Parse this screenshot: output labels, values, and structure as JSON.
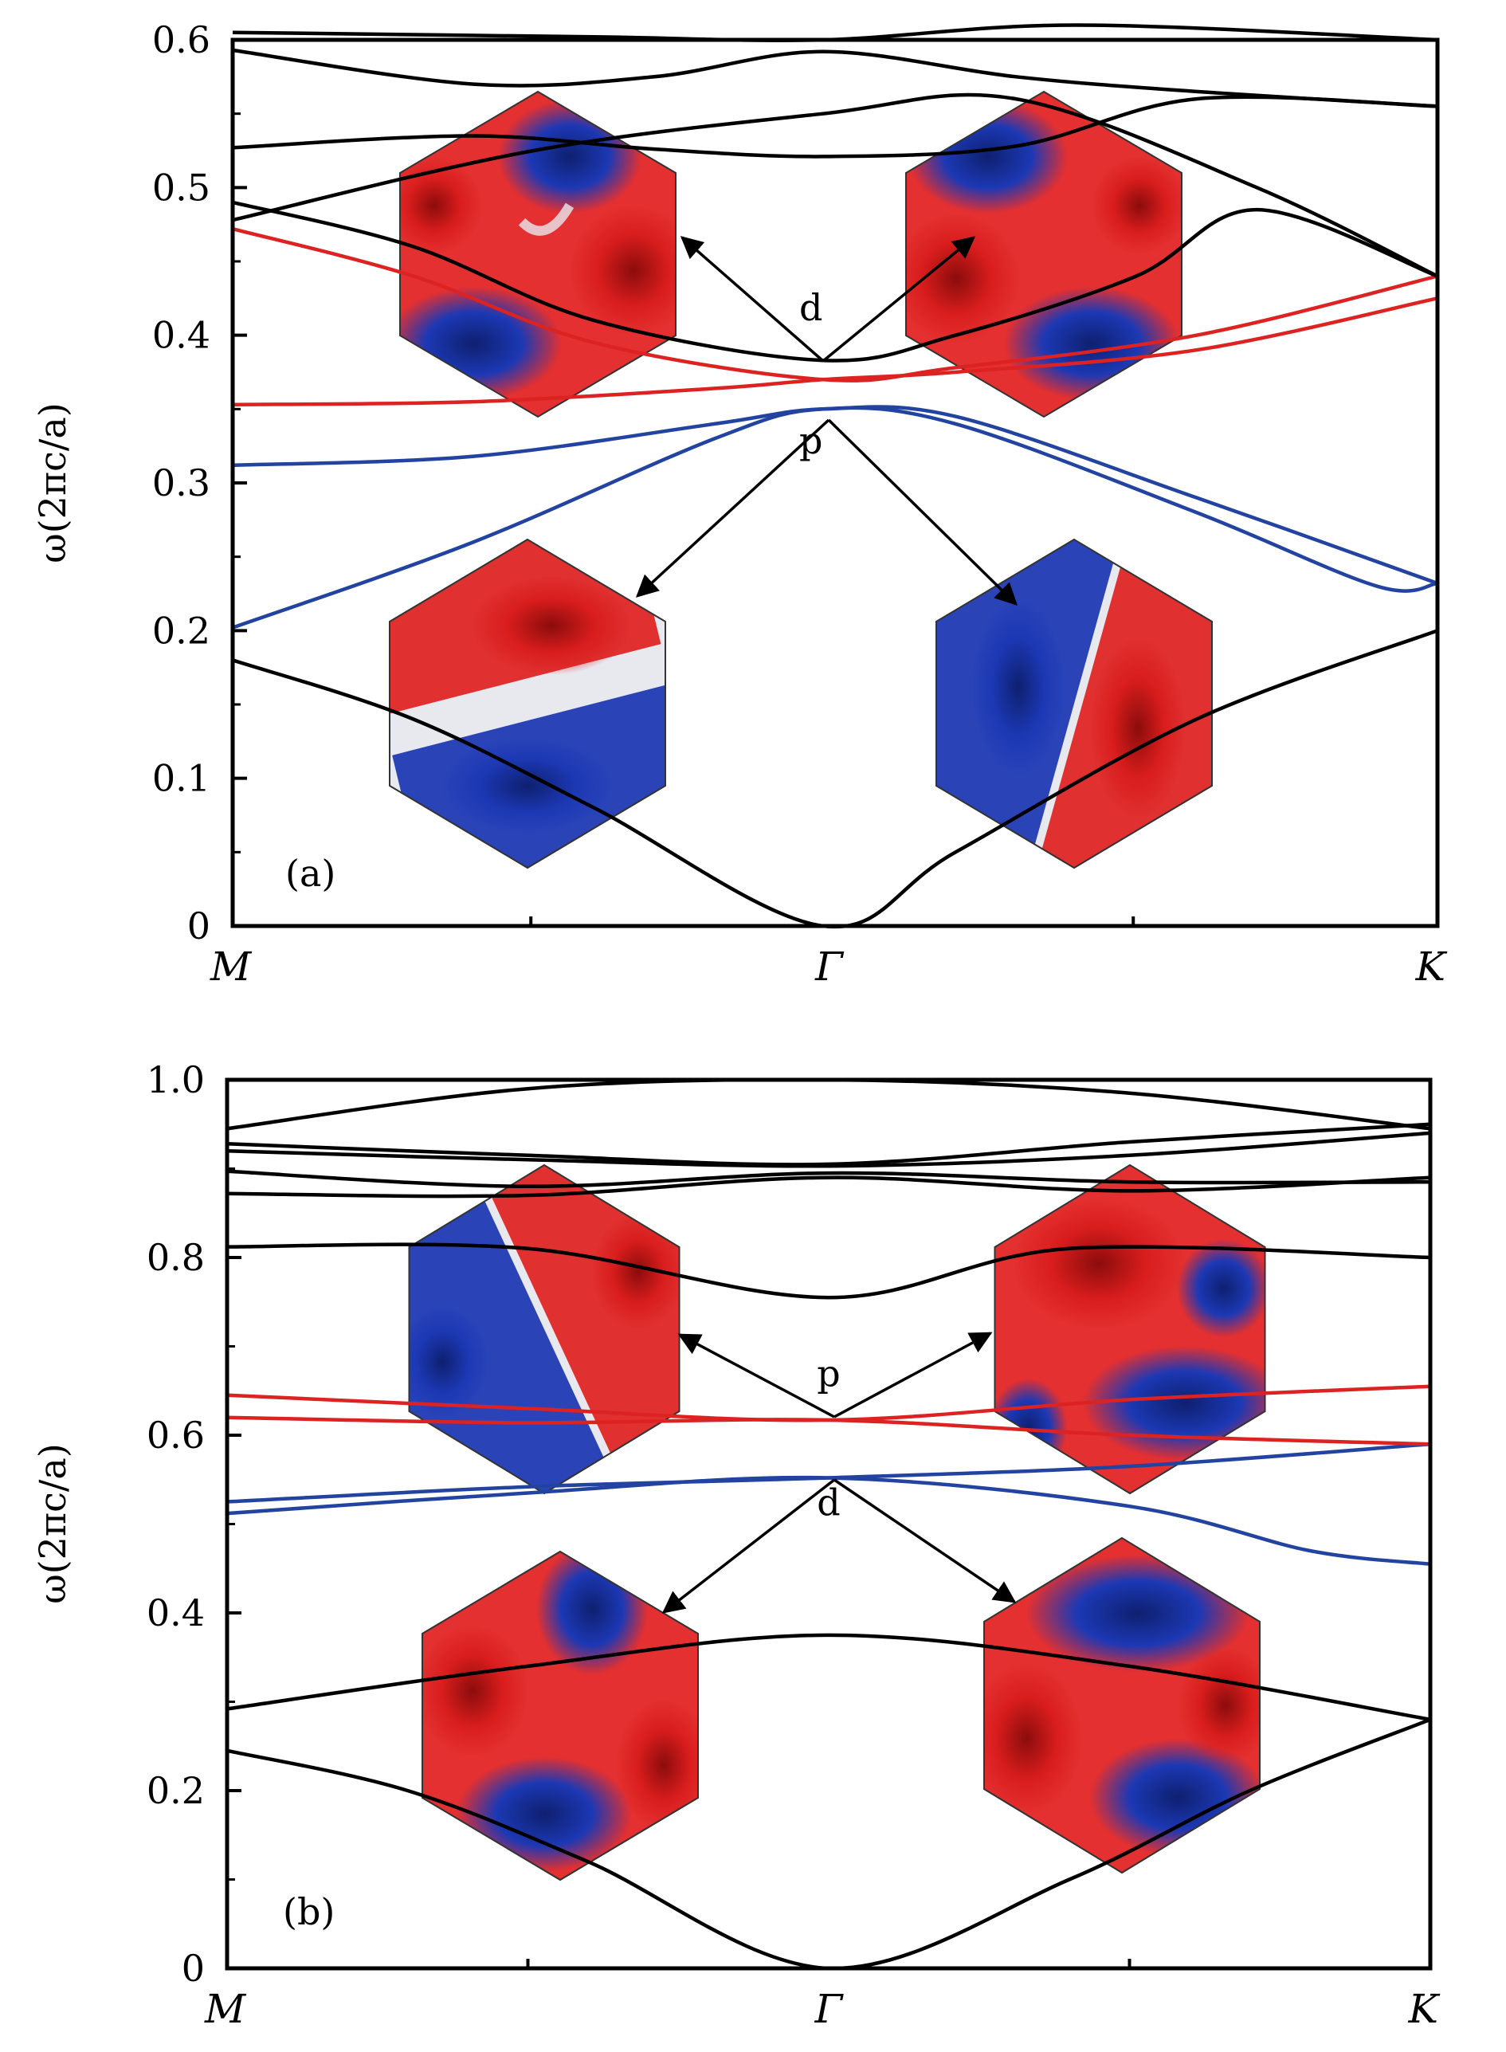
{
  "colors": {
    "background": "#ffffff",
    "frame": "#000000",
    "band_plain": "#000000",
    "band_red": "#dd2222",
    "band_blue": "#2244a0",
    "field_pos": "#d81c1c",
    "field_neg": "#1c36b0",
    "field_zero": "#e8e8ee"
  },
  "chart_data": [
    {
      "type": "line",
      "panel_label": "(a)",
      "ylabel": "ω(2πc/a)",
      "ylim": [
        0,
        0.6
      ],
      "y_ticks": [
        "0",
        "0.1",
        "0.2",
        "0.3",
        "0.4",
        "0.5",
        "0.6"
      ],
      "x_ticks": [
        "M",
        "Γ",
        "K"
      ],
      "series": [
        {
          "color": "black",
          "x": [
            0,
            0.15,
            0.3,
            0.49,
            0.6,
            0.8,
            1
          ],
          "y": [
            0.18,
            0.14,
            0.08,
            0.0,
            0.05,
            0.14,
            0.2
          ]
        },
        {
          "color": "blue",
          "x": [
            0,
            0.2,
            0.4,
            0.49,
            0.6,
            0.8,
            0.95,
            1
          ],
          "y": [
            0.202,
            0.26,
            0.33,
            0.35,
            0.34,
            0.28,
            0.23,
            0.232
          ]
        },
        {
          "color": "blue",
          "x": [
            0,
            0.2,
            0.4,
            0.49,
            0.6,
            0.8,
            1
          ],
          "y": [
            0.312,
            0.318,
            0.34,
            0.35,
            0.345,
            0.29,
            0.232
          ]
        },
        {
          "color": "red",
          "x": [
            0,
            0.2,
            0.4,
            0.49,
            0.6,
            0.8,
            1
          ],
          "y": [
            0.353,
            0.355,
            0.364,
            0.37,
            0.375,
            0.39,
            0.425
          ]
        },
        {
          "color": "red",
          "x": [
            0,
            0.15,
            0.3,
            0.49,
            0.6,
            0.8,
            1
          ],
          "y": [
            0.472,
            0.44,
            0.395,
            0.37,
            0.378,
            0.4,
            0.44
          ]
        },
        {
          "color": "black",
          "x": [
            0,
            0.15,
            0.3,
            0.49,
            0.6,
            0.75,
            0.85,
            1
          ],
          "y": [
            0.49,
            0.46,
            0.41,
            0.383,
            0.4,
            0.44,
            0.485,
            0.44
          ]
        },
        {
          "color": "black",
          "x": [
            0,
            0.25,
            0.49,
            0.65,
            0.85,
            1
          ],
          "y": [
            0.478,
            0.525,
            0.55,
            0.56,
            0.5,
            0.44
          ]
        },
        {
          "color": "black",
          "x": [
            0,
            0.2,
            0.35,
            0.49,
            0.65,
            0.8,
            1
          ],
          "y": [
            0.527,
            0.535,
            0.526,
            0.521,
            0.528,
            0.56,
            0.555
          ]
        },
        {
          "color": "black",
          "x": [
            0,
            0.2,
            0.35,
            0.49,
            0.65,
            0.8,
            1
          ],
          "y": [
            0.593,
            0.57,
            0.575,
            0.592,
            0.575,
            0.565,
            0.555
          ]
        },
        {
          "color": "black",
          "x": [
            0,
            0.3,
            0.49,
            0.7,
            1
          ],
          "y": [
            0.605,
            0.602,
            0.6,
            0.61,
            0.6
          ]
        }
      ],
      "annotations": [
        {
          "text": "d",
          "x": 0.48,
          "y": 0.41
        },
        {
          "text": "p",
          "x": 0.48,
          "y": 0.32
        }
      ]
    },
    {
      "type": "line",
      "panel_label": "(b)",
      "ylabel": "ω(2πc/a)",
      "ylim": [
        0,
        1.0
      ],
      "y_ticks": [
        "0",
        "0.2",
        "0.4",
        "0.6",
        "0.8",
        "1.0"
      ],
      "x_ticks": [
        "M",
        "Γ",
        "K"
      ],
      "series": [
        {
          "color": "black",
          "x": [
            0,
            0.15,
            0.3,
            0.5,
            0.7,
            0.85,
            1
          ],
          "y": [
            0.245,
            0.2,
            0.12,
            0.0,
            0.1,
            0.2,
            0.28
          ]
        },
        {
          "color": "black",
          "x": [
            0,
            0.25,
            0.5,
            0.75,
            1
          ],
          "y": [
            0.292,
            0.34,
            0.375,
            0.34,
            0.28
          ]
        },
        {
          "color": "blue",
          "x": [
            0,
            0.25,
            0.5,
            0.75,
            0.9,
            1
          ],
          "y": [
            0.512,
            0.535,
            0.552,
            0.52,
            0.47,
            0.455
          ]
        },
        {
          "color": "blue",
          "x": [
            0,
            0.25,
            0.5,
            0.75,
            1
          ],
          "y": [
            0.525,
            0.542,
            0.552,
            0.565,
            0.59
          ]
        },
        {
          "color": "red",
          "x": [
            0,
            0.25,
            0.5,
            0.75,
            1
          ],
          "y": [
            0.62,
            0.614,
            0.617,
            0.6,
            0.59
          ]
        },
        {
          "color": "red",
          "x": [
            0,
            0.25,
            0.5,
            0.75,
            1
          ],
          "y": [
            0.645,
            0.63,
            0.617,
            0.64,
            0.655
          ]
        },
        {
          "color": "black",
          "x": [
            0,
            0.25,
            0.5,
            0.7,
            1
          ],
          "y": [
            0.812,
            0.81,
            0.755,
            0.81,
            0.8
          ]
        },
        {
          "color": "black",
          "x": [
            0,
            0.25,
            0.5,
            0.75,
            1
          ],
          "y": [
            0.872,
            0.87,
            0.89,
            0.875,
            0.89
          ]
        },
        {
          "color": "black",
          "x": [
            0,
            0.25,
            0.5,
            0.75,
            1
          ],
          "y": [
            0.897,
            0.88,
            0.895,
            0.885,
            0.885
          ]
        },
        {
          "color": "black",
          "x": [
            0,
            0.25,
            0.5,
            0.75,
            1
          ],
          "y": [
            0.92,
            0.91,
            0.903,
            0.915,
            0.94
          ]
        },
        {
          "color": "black",
          "x": [
            0,
            0.25,
            0.5,
            0.75,
            1
          ],
          "y": [
            0.928,
            0.915,
            0.905,
            0.93,
            0.95
          ]
        },
        {
          "color": "black",
          "x": [
            0,
            0.25,
            0.5,
            0.75,
            1
          ],
          "y": [
            0.945,
            0.99,
            1.0,
            0.985,
            0.945
          ]
        }
      ],
      "annotations": [
        {
          "text": "p",
          "x": 0.5,
          "y": 0.655
        },
        {
          "text": "d",
          "x": 0.5,
          "y": 0.51
        }
      ]
    }
  ]
}
